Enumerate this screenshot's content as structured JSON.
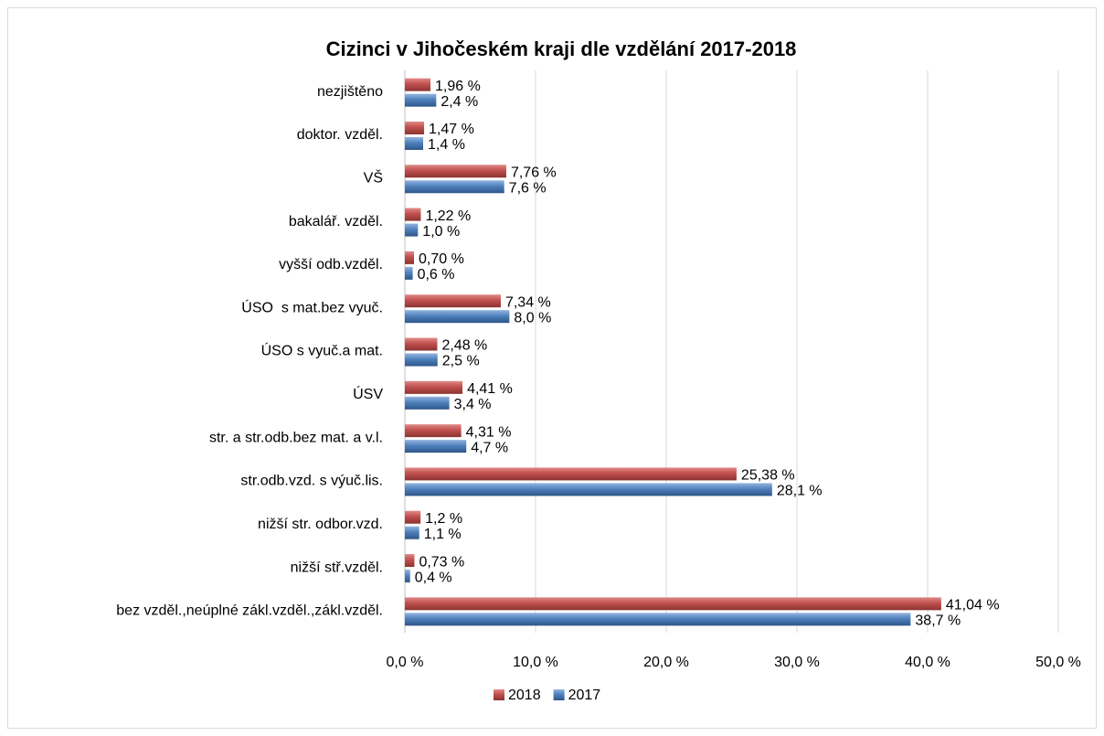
{
  "chart_data": {
    "type": "barh",
    "title": "Cizinci v Jihočeském kraji dle vzdělání 2017-2018",
    "categories": [
      "nezjištěno",
      "doktor. vzděl.",
      "VŠ",
      "bakalář. vzděl.",
      "vyšší odb.vzděl.",
      "ÚSO  s mat.bez vyuč.",
      "ÚSO s vyuč.a mat.",
      "ÚSV",
      "str. a str.odb.bez mat. a v.l.",
      "str.odb.vzd. s výuč.lis.",
      "nižší str. odbor.vzd.",
      "nižší stř.vzděl.",
      "bez vzděl.,neúplné zákl.vzděl.,zákl.vzděl."
    ],
    "series": [
      {
        "name": "2018",
        "color": "#c0504d",
        "values": [
          1.96,
          1.47,
          7.76,
          1.22,
          0.7,
          7.34,
          2.48,
          4.41,
          4.31,
          25.38,
          1.2,
          0.73,
          41.04
        ],
        "value_labels": [
          "1,96 %",
          "1,47 %",
          "7,76 %",
          "1,22 %",
          "0,70 %",
          "7,34 %",
          "2,48 %",
          "4,41 %",
          "4,31 %",
          "25,38 %",
          "1,2 %",
          "0,73 %",
          "41,04 %"
        ]
      },
      {
        "name": "2017",
        "color": "#4f81bd",
        "values": [
          2.4,
          1.4,
          7.6,
          1.0,
          0.6,
          8.0,
          2.5,
          3.4,
          4.7,
          28.1,
          1.1,
          0.4,
          38.7
        ],
        "value_labels": [
          "2,4 %",
          "1,4 %",
          "7,6 %",
          "1,0 %",
          "0,6 %",
          "8,0 %",
          "2,5 %",
          "3,4 %",
          "4,7 %",
          "28,1 %",
          "1,1 %",
          "0,4 %",
          "38,7 %"
        ]
      }
    ],
    "xlim": [
      0,
      50
    ],
    "xticks": [
      {
        "value": 0,
        "label": "0,0 %"
      },
      {
        "value": 10,
        "label": "10,0 %"
      },
      {
        "value": 20,
        "label": "20,0 %"
      },
      {
        "value": 30,
        "label": "30,0 %"
      },
      {
        "value": 40,
        "label": "40,0 %"
      },
      {
        "value": 50,
        "label": "50,0 %"
      }
    ],
    "grid": true,
    "legend": "bottom"
  }
}
